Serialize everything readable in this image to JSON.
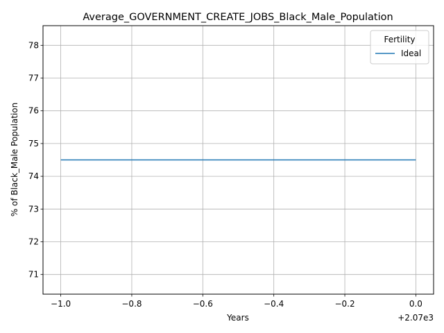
{
  "chart_data": {
    "type": "line",
    "title": "Average_GOVERNMENT_CREATE_JOBS_Black_Male_Population",
    "xlabel": "Years",
    "ylabel": "% of Black_Male Population",
    "x_offset_label": "+2.07e3",
    "xlim": [
      -1.05,
      0.05
    ],
    "ylim": [
      70.4,
      78.6
    ],
    "x_ticks": [
      -1.0,
      -0.8,
      -0.6,
      -0.4,
      -0.2,
      0.0
    ],
    "x_tick_labels": [
      "−1.0",
      "−0.8",
      "−0.6",
      "−0.4",
      "−0.2",
      "0.0"
    ],
    "y_ticks": [
      71,
      72,
      73,
      74,
      75,
      76,
      77,
      78
    ],
    "y_tick_labels": [
      "71",
      "72",
      "73",
      "74",
      "75",
      "76",
      "77",
      "78"
    ],
    "grid": true,
    "legend": {
      "title": "Fertility",
      "position": "top-right"
    },
    "series": [
      {
        "name": "Ideal",
        "color": "#1f77b4",
        "x": [
          -1.0,
          0.0
        ],
        "y": [
          74.5,
          74.5
        ]
      }
    ]
  }
}
